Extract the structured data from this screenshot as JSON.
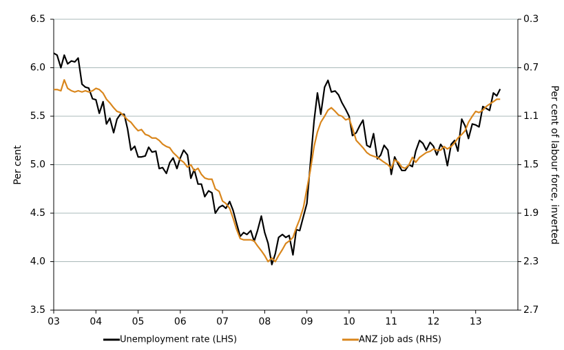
{
  "chart_data": {
    "type": "line",
    "y_label": "Per cent",
    "y2_label": "Per cent of labour force, inverted",
    "x": [
      2003,
      2003.08,
      2003.17,
      2003.25,
      2003.33,
      2003.42,
      2003.5,
      2003.58,
      2003.67,
      2003.75,
      2003.83,
      2003.92,
      2004,
      2004.08,
      2004.17,
      2004.25,
      2004.33,
      2004.42,
      2004.5,
      2004.58,
      2004.67,
      2004.75,
      2004.83,
      2004.92,
      2005,
      2005.08,
      2005.17,
      2005.25,
      2005.33,
      2005.42,
      2005.5,
      2005.58,
      2005.67,
      2005.75,
      2005.83,
      2005.92,
      2006,
      2006.08,
      2006.17,
      2006.25,
      2006.33,
      2006.42,
      2006.5,
      2006.58,
      2006.67,
      2006.75,
      2006.83,
      2006.92,
      2007,
      2007.08,
      2007.17,
      2007.25,
      2007.33,
      2007.42,
      2007.5,
      2007.58,
      2007.67,
      2007.75,
      2007.83,
      2007.92,
      2008,
      2008.08,
      2008.17,
      2008.25,
      2008.33,
      2008.42,
      2008.5,
      2008.58,
      2008.67,
      2008.75,
      2008.83,
      2008.92,
      2009,
      2009.08,
      2009.17,
      2009.25,
      2009.33,
      2009.42,
      2009.5,
      2009.58,
      2009.67,
      2009.75,
      2009.83,
      2009.92,
      2010,
      2010.08,
      2010.17,
      2010.25,
      2010.33,
      2010.42,
      2010.5,
      2010.58,
      2010.67,
      2010.75,
      2010.83,
      2010.92,
      2011,
      2011.08,
      2011.17,
      2011.25,
      2011.33,
      2011.42,
      2011.5,
      2011.58,
      2011.67,
      2011.75,
      2011.83,
      2011.92,
      2012,
      2012.08,
      2012.17,
      2012.25,
      2012.33,
      2012.42,
      2012.5,
      2012.58,
      2012.67,
      2012.75,
      2012.83,
      2012.92,
      2013,
      2013.08,
      2013.17,
      2013.25,
      2013.33,
      2013.42,
      2013.5,
      2013.58
    ],
    "series": [
      {
        "name": "Unemployment rate (LHS)",
        "color": "#000000",
        "values": [
          6.15,
          6.13,
          6.0,
          6.13,
          6.04,
          6.07,
          6.06,
          6.1,
          5.83,
          5.8,
          5.79,
          5.68,
          5.67,
          5.53,
          5.65,
          5.42,
          5.48,
          5.33,
          5.47,
          5.52,
          5.52,
          5.37,
          5.15,
          5.19,
          5.08,
          5.08,
          5.09,
          5.18,
          5.13,
          5.14,
          4.96,
          4.97,
          4.91,
          5.02,
          5.07,
          4.96,
          5.07,
          5.15,
          5.1,
          4.86,
          4.95,
          4.8,
          4.8,
          4.67,
          4.73,
          4.71,
          4.5,
          4.56,
          4.58,
          4.55,
          4.62,
          4.53,
          4.4,
          4.26,
          4.3,
          4.28,
          4.32,
          4.21,
          4.32,
          4.47,
          4.3,
          4.19,
          3.97,
          4.08,
          4.25,
          4.28,
          4.25,
          4.27,
          4.07,
          4.33,
          4.32,
          4.47,
          4.6,
          5.0,
          5.45,
          5.74,
          5.52,
          5.8,
          5.87,
          5.75,
          5.76,
          5.72,
          5.64,
          5.57,
          5.5,
          5.3,
          5.33,
          5.4,
          5.46,
          5.2,
          5.18,
          5.32,
          5.06,
          5.1,
          5.2,
          5.15,
          4.9,
          5.08,
          5.0,
          4.94,
          4.94,
          5.0,
          4.98,
          5.14,
          5.25,
          5.22,
          5.15,
          5.23,
          5.19,
          5.1,
          5.21,
          5.16,
          4.99,
          5.21,
          5.25,
          5.14,
          5.47,
          5.4,
          5.27,
          5.42,
          5.41,
          5.39,
          5.6,
          5.58,
          5.56,
          5.74,
          5.71,
          5.78
        ]
      },
      {
        "name": "ANZ job ads (RHS)",
        "color": "#d9861c",
        "axis": "y2",
        "values": [
          0.88,
          0.88,
          0.89,
          0.8,
          0.87,
          0.89,
          0.9,
          0.89,
          0.9,
          0.89,
          0.9,
          0.89,
          0.87,
          0.88,
          0.91,
          0.96,
          0.99,
          1.03,
          1.06,
          1.07,
          1.1,
          1.13,
          1.15,
          1.19,
          1.22,
          1.21,
          1.25,
          1.26,
          1.28,
          1.28,
          1.3,
          1.33,
          1.35,
          1.36,
          1.4,
          1.43,
          1.46,
          1.48,
          1.52,
          1.5,
          1.55,
          1.53,
          1.58,
          1.61,
          1.62,
          1.62,
          1.7,
          1.72,
          1.8,
          1.82,
          1.86,
          1.94,
          2.03,
          2.11,
          2.12,
          2.12,
          2.12,
          2.13,
          2.17,
          2.21,
          2.25,
          2.3,
          2.27,
          2.3,
          2.25,
          2.2,
          2.15,
          2.13,
          2.1,
          2.02,
          1.95,
          1.85,
          1.7,
          1.55,
          1.35,
          1.23,
          1.15,
          1.1,
          1.05,
          1.03,
          1.06,
          1.09,
          1.1,
          1.13,
          1.12,
          1.2,
          1.3,
          1.33,
          1.36,
          1.4,
          1.42,
          1.43,
          1.44,
          1.46,
          1.48,
          1.5,
          1.53,
          1.46,
          1.48,
          1.52,
          1.53,
          1.5,
          1.44,
          1.48,
          1.44,
          1.42,
          1.4,
          1.39,
          1.37,
          1.38,
          1.38,
          1.35,
          1.37,
          1.35,
          1.32,
          1.28,
          1.25,
          1.22,
          1.15,
          1.1,
          1.06,
          1.07,
          1.05,
          1.02,
          1.0,
          0.98,
          0.96,
          0.96
        ]
      }
    ],
    "xlim": [
      2003,
      2014
    ],
    "xticks": [
      {
        "value": 2003,
        "label": "03"
      },
      {
        "value": 2004,
        "label": "04"
      },
      {
        "value": 2005,
        "label": "05"
      },
      {
        "value": 2006,
        "label": "06"
      },
      {
        "value": 2007,
        "label": "07"
      },
      {
        "value": 2008,
        "label": "08"
      },
      {
        "value": 2009,
        "label": "09"
      },
      {
        "value": 2010,
        "label": "10"
      },
      {
        "value": 2011,
        "label": "11"
      },
      {
        "value": 2012,
        "label": "12"
      },
      {
        "value": 2013,
        "label": "13"
      }
    ],
    "ylim": [
      3.5,
      6.5
    ],
    "yticks": [
      3.5,
      {
        "value": 4,
        "label": "4.0"
      },
      4.5,
      {
        "value": 5,
        "label": "5.0"
      },
      5.5,
      {
        "value": 6,
        "label": "6.0"
      },
      6.5
    ],
    "y2lim": [
      0.3,
      2.7
    ],
    "y2_inverted": true,
    "y2ticks": [
      0.3,
      0.7,
      1.1,
      1.5,
      1.9,
      2.3,
      2.7
    ],
    "grid": true,
    "legend": "bottom"
  }
}
